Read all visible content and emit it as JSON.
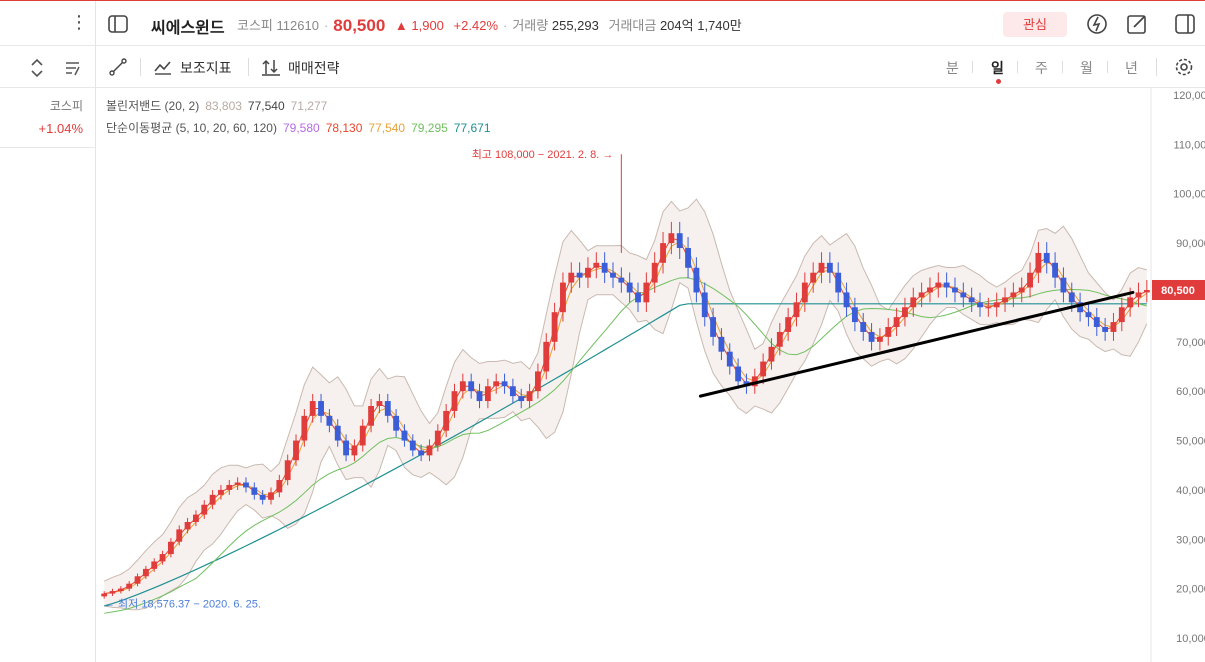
{
  "header": {
    "stock_name": "씨에스윈드",
    "market": "코스피",
    "code": "112610",
    "price": "80,500",
    "change": "▲ 1,900",
    "change_pct": "+2.42%",
    "volume_label": "거래량",
    "volume": "255,293",
    "amount_label": "거래대금",
    "amount": "204억 1,740만",
    "interest_label": "관심",
    "icons": [
      "panel-icon",
      "flash-icon",
      "edit-icon",
      "layout-icon"
    ]
  },
  "left": {
    "index_name": "코스피",
    "index_change": "+1.04%"
  },
  "toolbar": {
    "indicator_label": "보조지표",
    "strategy_label": "매매전략",
    "periods": [
      "분",
      "일",
      "주",
      "월",
      "년"
    ],
    "active_period": "일"
  },
  "legend": {
    "bollinger_label": "볼린저밴드 (20, 2)",
    "bollinger_upper": "83,803",
    "bollinger_mid": "77,540",
    "bollinger_lower": "71,277",
    "ma_label": "단순이동평균 (5, 10, 20, 60, 120)",
    "ma5": "79,580",
    "ma10": "78,130",
    "ma20": "77,540",
    "ma60": "79,295",
    "ma120": "77,671"
  },
  "colors": {
    "up": "#e03c3c",
    "down": "#3b5ed8",
    "ma5": "#b46be0",
    "ma10": "#e8472e",
    "ma20": "#e8a23a",
    "ma60": "#6fbf5e",
    "ma120": "#1f8f92",
    "band": "#c9b9b0"
  },
  "chart_data": {
    "type": "candlestick",
    "y_axis_ticks": [
      "120,000",
      "110,000",
      "100,000",
      "90,000",
      "80,000",
      "70,000",
      "60,000",
      "50,000",
      "40,000",
      "30,000",
      "20,000",
      "10,000"
    ],
    "ylim": [
      10000,
      120000
    ],
    "current_price_label": "80,500",
    "high_annotation": "최고 108,000 − 2021. 2. 8.",
    "low_annotation": "최저 18,576.37 − 2020. 6. 25.",
    "high_value": 108000,
    "low_value": 18576,
    "trendline": [
      [
        0.545,
        59000
      ],
      [
        0.935,
        80000
      ]
    ],
    "close_series": [
      19000,
      19500,
      20000,
      21000,
      22500,
      24000,
      25500,
      27000,
      29500,
      32000,
      33500,
      35000,
      37000,
      39000,
      40000,
      41000,
      41500,
      40500,
      39000,
      38000,
      39500,
      42000,
      46000,
      50000,
      55000,
      58000,
      55000,
      53000,
      50000,
      47000,
      49000,
      53000,
      57000,
      58000,
      55000,
      52000,
      50000,
      48000,
      47000,
      49000,
      52000,
      56000,
      60000,
      62000,
      60000,
      58000,
      61000,
      62000,
      61000,
      59000,
      58000,
      60000,
      64000,
      70000,
      76000,
      82000,
      84000,
      83000,
      85000,
      86000,
      84000,
      83000,
      82000,
      80000,
      78000,
      82000,
      86000,
      90000,
      92000,
      89000,
      85000,
      80000,
      75000,
      71000,
      68000,
      65000,
      62000,
      61000,
      63000,
      66000,
      69000,
      72000,
      75000,
      78000,
      82000,
      84000,
      86000,
      84000,
      80000,
      77000,
      74000,
      72000,
      70000,
      71000,
      73000,
      75000,
      77000,
      79000,
      80000,
      81000,
      82000,
      81000,
      80000,
      79000,
      78000,
      77000,
      77000,
      78000,
      79000,
      80000,
      81000,
      84000,
      88000,
      86000,
      83000,
      80000,
      78000,
      76000,
      75000,
      73000,
      72000,
      74000,
      77000,
      79000,
      80000,
      80500
    ]
  }
}
